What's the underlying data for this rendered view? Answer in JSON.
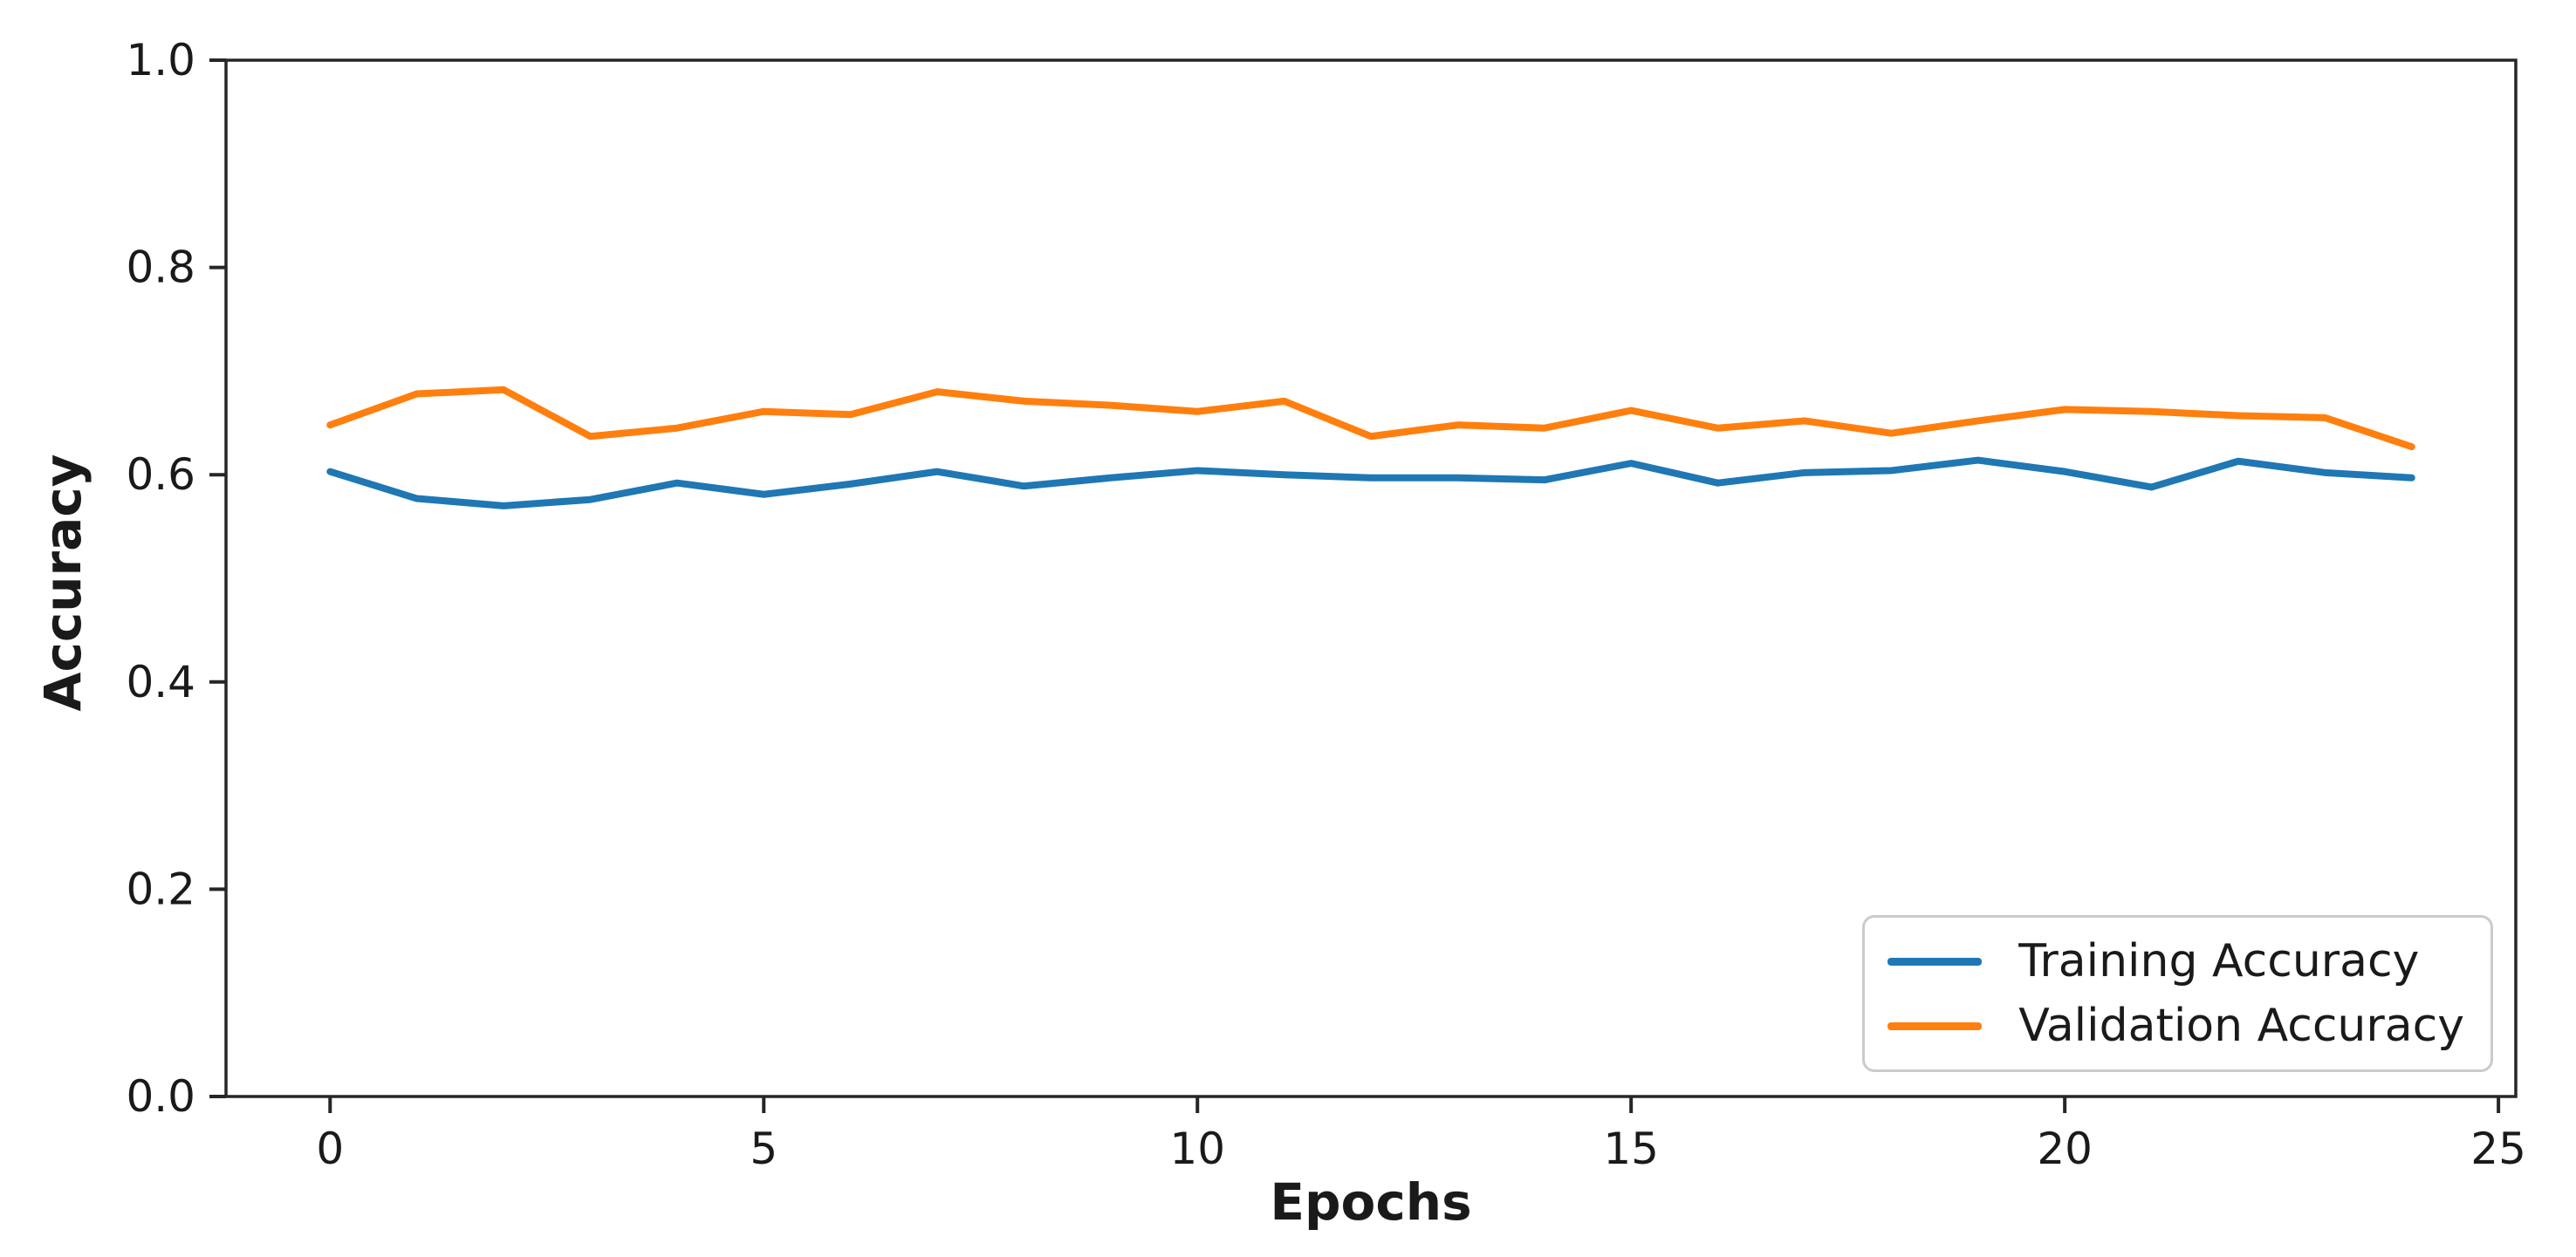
{
  "figure": {
    "background": "#ffffff"
  },
  "chart_data": {
    "type": "line",
    "title": "",
    "xlabel": "Epochs",
    "ylabel": "Accuracy",
    "xlim": [
      -1.2,
      25.2
    ],
    "ylim": [
      0.0,
      1.0
    ],
    "x_ticks": [
      "0",
      "5",
      "10",
      "15",
      "20",
      "25"
    ],
    "x_tick_values": [
      0,
      5,
      10,
      15,
      20,
      25
    ],
    "y_ticks": [
      "0.0",
      "0.2",
      "0.4",
      "0.6",
      "0.8",
      "1.0"
    ],
    "y_tick_values": [
      0.0,
      0.2,
      0.4,
      0.6,
      0.8,
      1.0
    ],
    "grid": false,
    "axis_color": "#262626",
    "tick_label_color": "#1a1a1a",
    "legend_position": "lower right",
    "x": [
      0,
      1,
      2,
      3,
      4,
      5,
      6,
      7,
      8,
      9,
      10,
      11,
      12,
      13,
      14,
      15,
      16,
      17,
      18,
      19,
      20,
      21,
      22,
      23,
      24
    ],
    "series": [
      {
        "name": "Training Accuracy",
        "color": "#1f77b4",
        "values": [
          0.603,
          0.577,
          0.57,
          0.576,
          0.592,
          0.581,
          0.591,
          0.603,
          0.589,
          0.597,
          0.604,
          0.6,
          0.597,
          0.597,
          0.595,
          0.611,
          0.592,
          0.602,
          0.604,
          0.614,
          0.603,
          0.588,
          0.613,
          0.602,
          0.597
        ]
      },
      {
        "name": "Validation Accuracy",
        "color": "#ff7f0e",
        "values": [
          0.648,
          0.678,
          0.682,
          0.637,
          0.645,
          0.661,
          0.658,
          0.68,
          0.671,
          0.667,
          0.661,
          0.671,
          0.637,
          0.648,
          0.645,
          0.662,
          0.645,
          0.652,
          0.64,
          0.652,
          0.663,
          0.661,
          0.657,
          0.655,
          0.627
        ]
      }
    ]
  }
}
